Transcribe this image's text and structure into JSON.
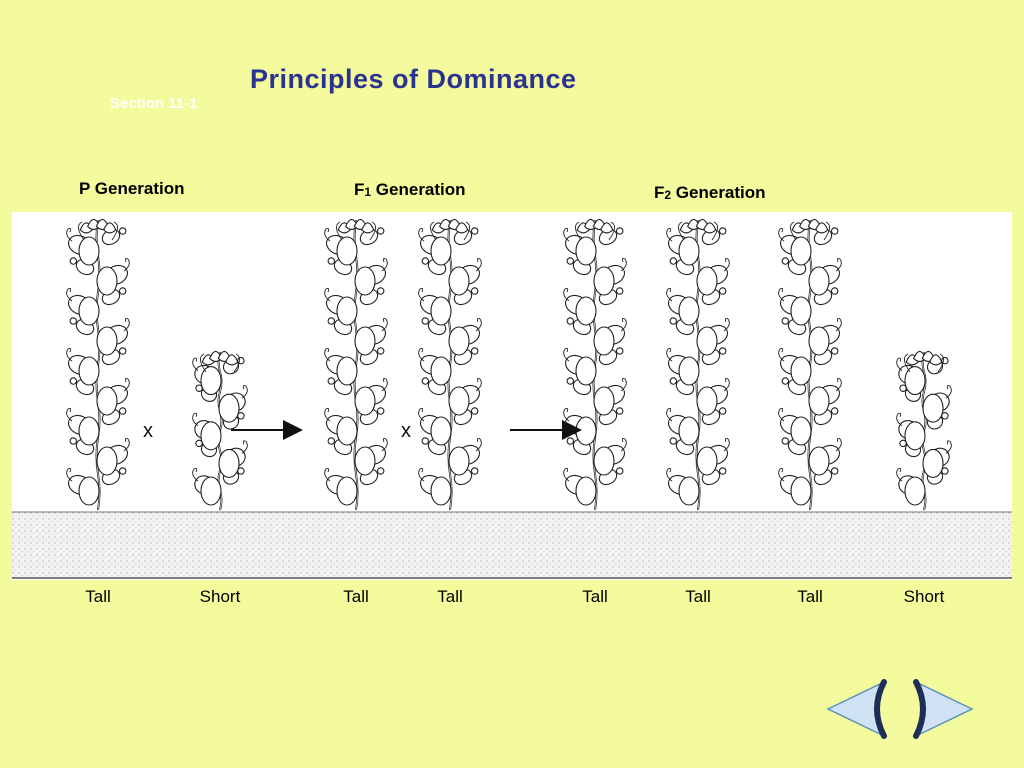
{
  "title": "Principles of Dominance",
  "section": "Section 11-1",
  "generations": {
    "p": {
      "prefix": "P",
      "suffix": " Generation"
    },
    "f1": {
      "prefix": "F",
      "sub": "1",
      "suffix": " Generation"
    },
    "f2": {
      "prefix": "F",
      "sub": "2",
      "suffix": " Generation"
    }
  },
  "cross_symbol": "x",
  "plants": [
    {
      "label": "Tall",
      "height": "tall"
    },
    {
      "label": "Short",
      "height": "short"
    },
    {
      "label": "Tall",
      "height": "tall"
    },
    {
      "label": "Tall",
      "height": "tall"
    },
    {
      "label": "Tall",
      "height": "tall"
    },
    {
      "label": "Tall",
      "height": "tall"
    },
    {
      "label": "Tall",
      "height": "tall"
    },
    {
      "label": "Short",
      "height": "short"
    }
  ],
  "navigation": {
    "previous": "back-arrow-icon",
    "next": "forward-arrow-icon"
  }
}
